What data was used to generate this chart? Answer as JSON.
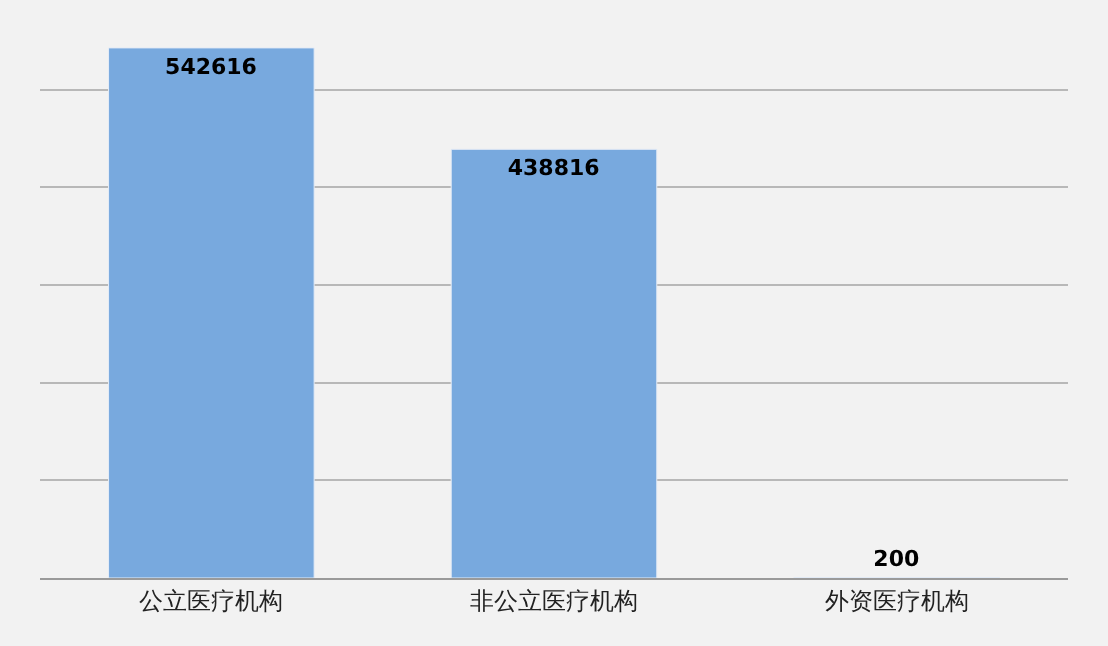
{
  "chart_data": {
    "type": "bar",
    "categories": [
      "公立医疗机构",
      "非公立医疗机构",
      "外资医疗机构"
    ],
    "values": [
      542616,
      438816,
      200
    ],
    "color": "#78a9de",
    "data_labels": true,
    "yticks": [
      {
        "value": 0,
        "label": null
      },
      {
        "value": 100000,
        "label": null
      },
      {
        "value": 200000,
        "label": null
      },
      {
        "value": 300000,
        "label": null
      },
      {
        "value": 400000,
        "label": null
      },
      {
        "value": 500000,
        "label": null
      }
    ],
    "grid": "y",
    "tick_labels": "x",
    "legend": false
  }
}
